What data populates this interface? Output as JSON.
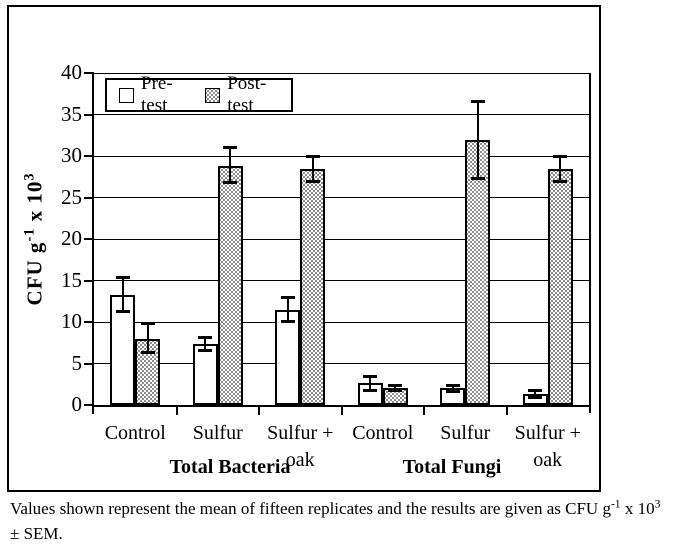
{
  "figure": {
    "caption": {
      "line1_base1": "Values shown represent the mean of fifteen replicates and the results are given as CFU g",
      "line1_sup1": "-1",
      "line1_base2": " x 10",
      "line1_sup2": "3",
      "line2": "± SEM."
    }
  },
  "chart_data": {
    "type": "bar",
    "title": "",
    "xlabel": "",
    "ylabel_text": "CFU g-1 x 103",
    "ylabel_parts": {
      "base1": "CFU g",
      "sup1": "-1",
      "base2": " x 10",
      "sup2": "3"
    },
    "ylim": [
      0,
      40
    ],
    "yticks": [
      0,
      5,
      10,
      15,
      20,
      25,
      30,
      35,
      40
    ],
    "grid": true,
    "legend_position": "top-left-inside",
    "legend": [
      {
        "label": "Pre-test",
        "swatch": "white"
      },
      {
        "label": "Post-test",
        "swatch": "dotted"
      }
    ],
    "categories": [
      "Control",
      "Sulfur",
      "Sulfur + oak",
      "Control",
      "Sulfur",
      "Sulfur + oak"
    ],
    "sections": [
      {
        "label": "Total Bacteria",
        "groups": [
          0,
          1,
          2
        ]
      },
      {
        "label": "Total Fungi",
        "groups": [
          3,
          4,
          5
        ]
      }
    ],
    "groups": [
      {
        "category": "Control",
        "label_lines": [
          "Control"
        ]
      },
      {
        "category": "Sulfur",
        "label_lines": [
          "Sulfur"
        ]
      },
      {
        "category": "Sulfur + oak",
        "label_lines": [
          "Sulfur +",
          "oak"
        ]
      },
      {
        "category": "Control",
        "label_lines": [
          "Control"
        ]
      },
      {
        "category": "Sulfur",
        "label_lines": [
          "Sulfur"
        ]
      },
      {
        "category": "Sulfur + oak",
        "label_lines": [
          "Sulfur +",
          "oak"
        ]
      }
    ],
    "series": [
      {
        "name": "Pre-test",
        "fill": "white",
        "values": [
          13.3,
          7.3,
          11.5,
          2.6,
          2.0,
          1.3
        ],
        "err_low": [
          11.3,
          6.6,
          10.1,
          1.8,
          1.6,
          0.9
        ],
        "err_high": [
          15.4,
          8.1,
          13.0,
          3.4,
          2.4,
          1.8
        ]
      },
      {
        "name": "Post-test",
        "fill": "dotted",
        "values": [
          8.0,
          28.8,
          28.4,
          2.0,
          31.9,
          28.4
        ],
        "err_low": [
          6.3,
          26.8,
          26.9,
          1.8,
          27.3,
          26.9
        ],
        "err_high": [
          9.8,
          31.0,
          30.0,
          2.3,
          36.6,
          30.0
        ]
      }
    ],
    "colors": {
      "line": "#000000",
      "bar_fill": "#ffffff",
      "background": "#ffffff"
    }
  }
}
